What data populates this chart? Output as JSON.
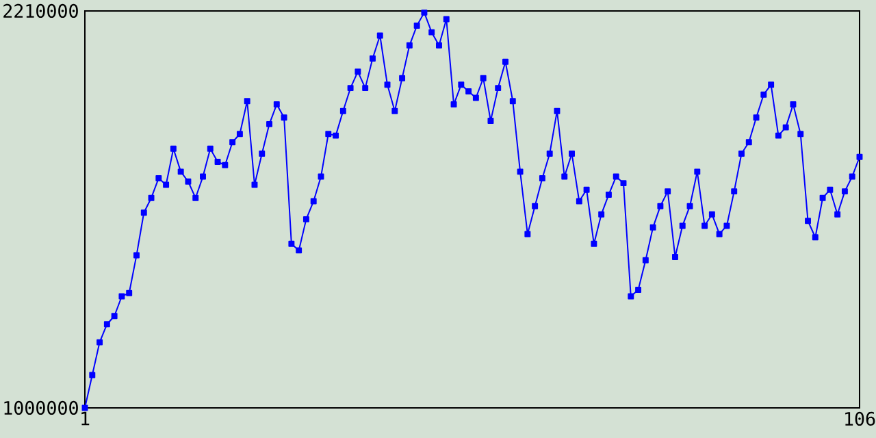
{
  "chart_data": {
    "type": "line",
    "x": [
      1,
      2,
      3,
      4,
      5,
      6,
      7,
      8,
      9,
      10,
      11,
      12,
      13,
      14,
      15,
      16,
      17,
      18,
      19,
      20,
      21,
      22,
      23,
      24,
      25,
      26,
      27,
      28,
      29,
      30,
      31,
      32,
      33,
      34,
      35,
      36,
      37,
      38,
      39,
      40,
      41,
      42,
      43,
      44,
      45,
      46,
      47,
      48,
      49,
      50,
      51,
      52,
      53,
      54,
      55,
      56,
      57,
      58,
      59,
      60,
      61,
      62,
      63,
      64,
      65,
      66,
      67,
      68,
      69,
      70,
      71,
      72,
      73,
      74,
      75,
      76,
      77,
      78,
      79,
      80,
      81,
      82,
      83,
      84,
      85,
      86,
      87,
      88,
      89,
      90,
      91,
      92,
      93,
      94,
      95,
      96,
      97,
      98,
      99,
      100,
      101,
      102,
      103,
      104,
      105,
      106
    ],
    "series": [
      {
        "color": "#0000ff",
        "values": [
          1000000,
          1100000,
          1200000,
          1255000,
          1280000,
          1340000,
          1350000,
          1465000,
          1595000,
          1640000,
          1700000,
          1680000,
          1790000,
          1720000,
          1690000,
          1640000,
          1705000,
          1790000,
          1750000,
          1740000,
          1810000,
          1835000,
          1935000,
          1680000,
          1775000,
          1865000,
          1925000,
          1885000,
          1500000,
          1480000,
          1575000,
          1630000,
          1705000,
          1835000,
          1830000,
          1905000,
          1975000,
          2025000,
          1975000,
          2065000,
          2135000,
          1985000,
          1905000,
          2005000,
          2105000,
          2165000,
          2205000,
          2145000,
          2105000,
          2185000,
          1925000,
          1985000,
          1965000,
          1945000,
          2005000,
          1875000,
          1975000,
          2055000,
          1935000,
          1720000,
          1530000,
          1615000,
          1700000,
          1775000,
          1905000,
          1705000,
          1775000,
          1630000,
          1665000,
          1500000,
          1590000,
          1650000,
          1705000,
          1685000,
          1340000,
          1360000,
          1450000,
          1550000,
          1615000,
          1660000,
          1460000,
          1555000,
          1615000,
          1720000,
          1555000,
          1590000,
          1530000,
          1555000,
          1660000,
          1775000,
          1810000,
          1885000,
          1955000,
          1985000,
          1830000,
          1855000,
          1925000,
          1835000,
          1570000,
          1520000,
          1640000,
          1665000,
          1590000,
          1660000,
          1705000,
          1765000
        ]
      }
    ],
    "xlim": [
      1,
      106
    ],
    "xticks": [
      1,
      106
    ],
    "ylim": [
      1000000,
      2210000
    ],
    "yticks": [
      1000000,
      2210000
    ],
    "marker": "square",
    "line_style": "solid"
  }
}
